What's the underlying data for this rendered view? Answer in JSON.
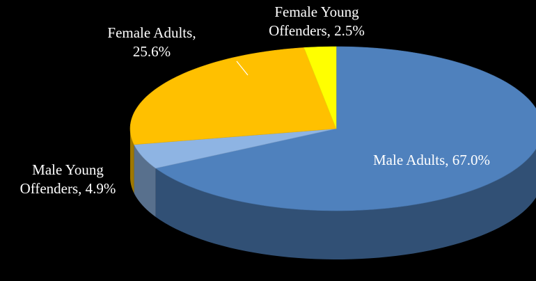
{
  "chart_data": {
    "type": "pie",
    "values": [
      67.0,
      4.9,
      25.6,
      2.5
    ],
    "value_labels": [
      "Male Adults, 67.0%",
      "Male Young Offenders, 4.9%",
      "Female Adults, 25.6%",
      "Female Young Offenders, 2.5%"
    ],
    "colors": [
      "#4f81bd",
      "#8eb4e3",
      "#ffc000",
      "#ffff00"
    ]
  }
}
